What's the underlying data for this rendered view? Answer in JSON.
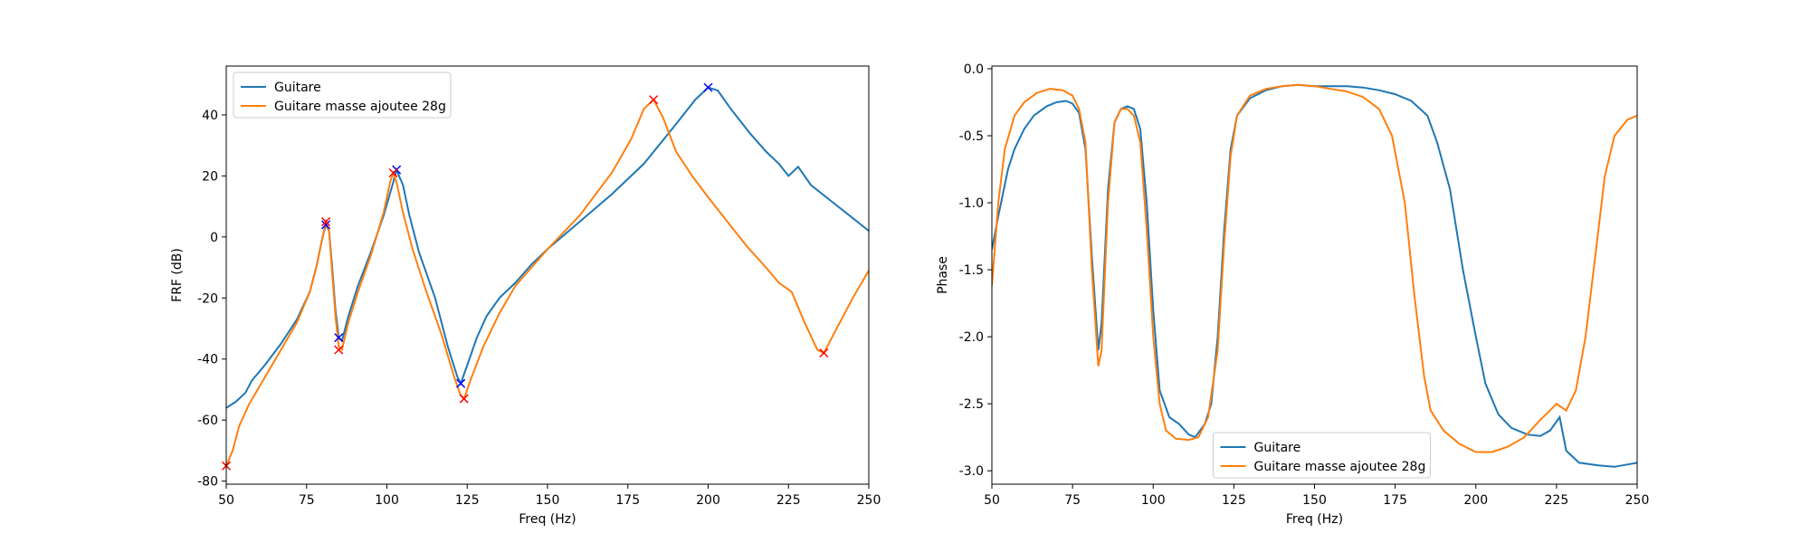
{
  "chart_data": [
    {
      "type": "line",
      "xlabel": "Freq (Hz)",
      "ylabel": "FRF (dB)",
      "xlim": [
        50,
        250
      ],
      "ylim": [
        -81,
        56
      ],
      "xticks": [
        50,
        75,
        100,
        125,
        150,
        175,
        200,
        225,
        250
      ],
      "yticks": [
        -80,
        -60,
        -40,
        -20,
        0,
        20,
        40
      ],
      "legend": "top-left",
      "series": [
        {
          "name": "Guitare",
          "color": "#1f77b4",
          "points": [
            [
              50,
              -56
            ],
            [
              53,
              -54
            ],
            [
              56,
              -51
            ],
            [
              58,
              -47
            ],
            [
              62,
              -42
            ],
            [
              67,
              -35
            ],
            [
              72,
              -27
            ],
            [
              76,
              -18
            ],
            [
              78,
              -10
            ],
            [
              80,
              0
            ],
            [
              81,
              4
            ],
            [
              82,
              2
            ],
            [
              83,
              -10
            ],
            [
              84,
              -24
            ],
            [
              85,
              -33
            ],
            [
              86,
              -34
            ],
            [
              88,
              -26
            ],
            [
              91,
              -16
            ],
            [
              95,
              -5
            ],
            [
              99,
              7
            ],
            [
              102,
              18
            ],
            [
              103,
              22
            ],
            [
              105,
              17
            ],
            [
              107,
              7
            ],
            [
              110,
              -5
            ],
            [
              115,
              -20
            ],
            [
              119,
              -36
            ],
            [
              122,
              -46
            ],
            [
              123,
              -48
            ],
            [
              125,
              -42
            ],
            [
              128,
              -33
            ],
            [
              131,
              -26
            ],
            [
              135,
              -20
            ],
            [
              140,
              -15
            ],
            [
              145,
              -9
            ],
            [
              150,
              -4
            ],
            [
              160,
              5
            ],
            [
              170,
              14
            ],
            [
              180,
              24
            ],
            [
              190,
              37
            ],
            [
              196,
              45
            ],
            [
              200,
              49
            ],
            [
              203,
              48
            ],
            [
              207,
              42
            ],
            [
              213,
              34
            ],
            [
              218,
              28
            ],
            [
              222,
              24
            ],
            [
              225,
              20
            ],
            [
              228,
              23
            ],
            [
              232,
              17
            ],
            [
              238,
              12
            ],
            [
              244,
              7
            ],
            [
              250,
              2
            ]
          ]
        },
        {
          "name": "Guitare masse ajoutee 28g",
          "color": "#ff7f0e",
          "points": [
            [
              50,
              -75
            ],
            [
              52,
              -70
            ],
            [
              54,
              -62
            ],
            [
              57,
              -55
            ],
            [
              62,
              -46
            ],
            [
              67,
              -37
            ],
            [
              72,
              -28
            ],
            [
              76,
              -18
            ],
            [
              78,
              -10
            ],
            [
              80,
              0
            ],
            [
              81,
              5
            ],
            [
              82,
              2
            ],
            [
              83,
              -12
            ],
            [
              84,
              -26
            ],
            [
              85,
              -36
            ],
            [
              86,
              -37
            ],
            [
              88,
              -28
            ],
            [
              91,
              -18
            ],
            [
              95,
              -6
            ],
            [
              99,
              8
            ],
            [
              101,
              18
            ],
            [
              102,
              21
            ],
            [
              103,
              18
            ],
            [
              105,
              8
            ],
            [
              108,
              -4
            ],
            [
              112,
              -17
            ],
            [
              117,
              -32
            ],
            [
              121,
              -46
            ],
            [
              123,
              -52
            ],
            [
              124,
              -53
            ],
            [
              126,
              -47
            ],
            [
              130,
              -36
            ],
            [
              135,
              -25
            ],
            [
              140,
              -16
            ],
            [
              145,
              -10
            ],
            [
              150,
              -4
            ],
            [
              160,
              7
            ],
            [
              170,
              21
            ],
            [
              176,
              32
            ],
            [
              180,
              42
            ],
            [
              183,
              45
            ],
            [
              186,
              39
            ],
            [
              190,
              28
            ],
            [
              195,
              20
            ],
            [
              200,
              13
            ],
            [
              206,
              5
            ],
            [
              212,
              -3
            ],
            [
              218,
              -10
            ],
            [
              222,
              -15
            ],
            [
              226,
              -18
            ],
            [
              230,
              -28
            ],
            [
              234,
              -37
            ],
            [
              236,
              -38
            ],
            [
              240,
              -30
            ],
            [
              245,
              -20
            ],
            [
              250,
              -11
            ]
          ]
        }
      ],
      "markers": [
        {
          "name": "peaks-guitare",
          "color": "#0000ff",
          "points": [
            [
              81,
              4
            ],
            [
              85,
              -33
            ],
            [
              103,
              22
            ],
            [
              123,
              -48
            ],
            [
              200,
              49
            ]
          ]
        },
        {
          "name": "peaks-masse",
          "color": "#ff0000",
          "points": [
            [
              50,
              -75
            ],
            [
              81,
              5
            ],
            [
              85,
              -37
            ],
            [
              102,
              21
            ],
            [
              124,
              -53
            ],
            [
              183,
              45
            ],
            [
              236,
              -38
            ]
          ]
        }
      ]
    },
    {
      "type": "line",
      "xlabel": "Freq (Hz)",
      "ylabel": "Phase",
      "xlim": [
        50,
        250
      ],
      "ylim": [
        -3.1,
        0.02
      ],
      "xticks": [
        50,
        75,
        100,
        125,
        150,
        175,
        200,
        225,
        250
      ],
      "yticks": [
        -3.0,
        -2.5,
        -2.0,
        -1.5,
        -1.0,
        -0.5,
        0.0
      ],
      "legend": "bottom-center",
      "series": [
        {
          "name": "Guitare",
          "color": "#1f77b4",
          "points": [
            [
              50,
              -1.35
            ],
            [
              52,
              -1.1
            ],
            [
              55,
              -0.75
            ],
            [
              57,
              -0.6
            ],
            [
              60,
              -0.45
            ],
            [
              63,
              -0.35
            ],
            [
              67,
              -0.28
            ],
            [
              70,
              -0.25
            ],
            [
              73,
              -0.24
            ],
            [
              75,
              -0.26
            ],
            [
              77,
              -0.33
            ],
            [
              79,
              -0.6
            ],
            [
              81,
              -1.4
            ],
            [
              83,
              -2.1
            ],
            [
              84,
              -1.9
            ],
            [
              86,
              -0.9
            ],
            [
              88,
              -0.4
            ],
            [
              90,
              -0.3
            ],
            [
              92,
              -0.28
            ],
            [
              94,
              -0.3
            ],
            [
              96,
              -0.45
            ],
            [
              98,
              -1.0
            ],
            [
              100,
              -1.8
            ],
            [
              102,
              -2.4
            ],
            [
              105,
              -2.6
            ],
            [
              108,
              -2.65
            ],
            [
              111,
              -2.73
            ],
            [
              113,
              -2.75
            ],
            [
              116,
              -2.65
            ],
            [
              118,
              -2.5
            ],
            [
              120,
              -2.0
            ],
            [
              122,
              -1.2
            ],
            [
              124,
              -0.6
            ],
            [
              126,
              -0.35
            ],
            [
              130,
              -0.22
            ],
            [
              135,
              -0.16
            ],
            [
              140,
              -0.13
            ],
            [
              145,
              -0.12
            ],
            [
              150,
              -0.13
            ],
            [
              155,
              -0.13
            ],
            [
              160,
              -0.13
            ],
            [
              165,
              -0.14
            ],
            [
              170,
              -0.16
            ],
            [
              175,
              -0.19
            ],
            [
              180,
              -0.24
            ],
            [
              185,
              -0.35
            ],
            [
              188,
              -0.55
            ],
            [
              192,
              -0.9
            ],
            [
              196,
              -1.5
            ],
            [
              200,
              -2.0
            ],
            [
              203,
              -2.35
            ],
            [
              207,
              -2.58
            ],
            [
              211,
              -2.68
            ],
            [
              216,
              -2.73
            ],
            [
              220,
              -2.74
            ],
            [
              223,
              -2.7
            ],
            [
              226,
              -2.6
            ],
            [
              228,
              -2.85
            ],
            [
              232,
              -2.94
            ],
            [
              238,
              -2.96
            ],
            [
              243,
              -2.97
            ],
            [
              250,
              -2.94
            ]
          ]
        },
        {
          "name": "Guitare masse ajoutee 28g",
          "color": "#ff7f0e",
          "points": [
            [
              50,
              -1.62
            ],
            [
              52,
              -1.0
            ],
            [
              54,
              -0.6
            ],
            [
              57,
              -0.35
            ],
            [
              60,
              -0.25
            ],
            [
              64,
              -0.18
            ],
            [
              68,
              -0.15
            ],
            [
              72,
              -0.16
            ],
            [
              75,
              -0.2
            ],
            [
              77,
              -0.3
            ],
            [
              79,
              -0.55
            ],
            [
              81,
              -1.5
            ],
            [
              83,
              -2.22
            ],
            [
              84,
              -2.1
            ],
            [
              86,
              -1.0
            ],
            [
              88,
              -0.4
            ],
            [
              90,
              -0.3
            ],
            [
              92,
              -0.3
            ],
            [
              94,
              -0.35
            ],
            [
              96,
              -0.55
            ],
            [
              98,
              -1.2
            ],
            [
              100,
              -2.0
            ],
            [
              102,
              -2.5
            ],
            [
              104,
              -2.7
            ],
            [
              107,
              -2.76
            ],
            [
              111,
              -2.77
            ],
            [
              114,
              -2.75
            ],
            [
              117,
              -2.6
            ],
            [
              120,
              -2.1
            ],
            [
              122,
              -1.3
            ],
            [
              124,
              -0.65
            ],
            [
              126,
              -0.35
            ],
            [
              130,
              -0.2
            ],
            [
              135,
              -0.15
            ],
            [
              140,
              -0.13
            ],
            [
              145,
              -0.12
            ],
            [
              150,
              -0.13
            ],
            [
              155,
              -0.15
            ],
            [
              160,
              -0.17
            ],
            [
              165,
              -0.21
            ],
            [
              170,
              -0.3
            ],
            [
              174,
              -0.5
            ],
            [
              178,
              -1.0
            ],
            [
              181,
              -1.7
            ],
            [
              184,
              -2.3
            ],
            [
              186,
              -2.55
            ],
            [
              190,
              -2.7
            ],
            [
              195,
              -2.8
            ],
            [
              200,
              -2.86
            ],
            [
              205,
              -2.86
            ],
            [
              210,
              -2.82
            ],
            [
              215,
              -2.75
            ],
            [
              220,
              -2.62
            ],
            [
              223,
              -2.55
            ],
            [
              225,
              -2.5
            ],
            [
              228,
              -2.55
            ],
            [
              231,
              -2.4
            ],
            [
              234,
              -2.0
            ],
            [
              237,
              -1.4
            ],
            [
              240,
              -0.8
            ],
            [
              243,
              -0.5
            ],
            [
              247,
              -0.38
            ],
            [
              250,
              -0.35
            ]
          ]
        }
      ],
      "markers": []
    }
  ]
}
